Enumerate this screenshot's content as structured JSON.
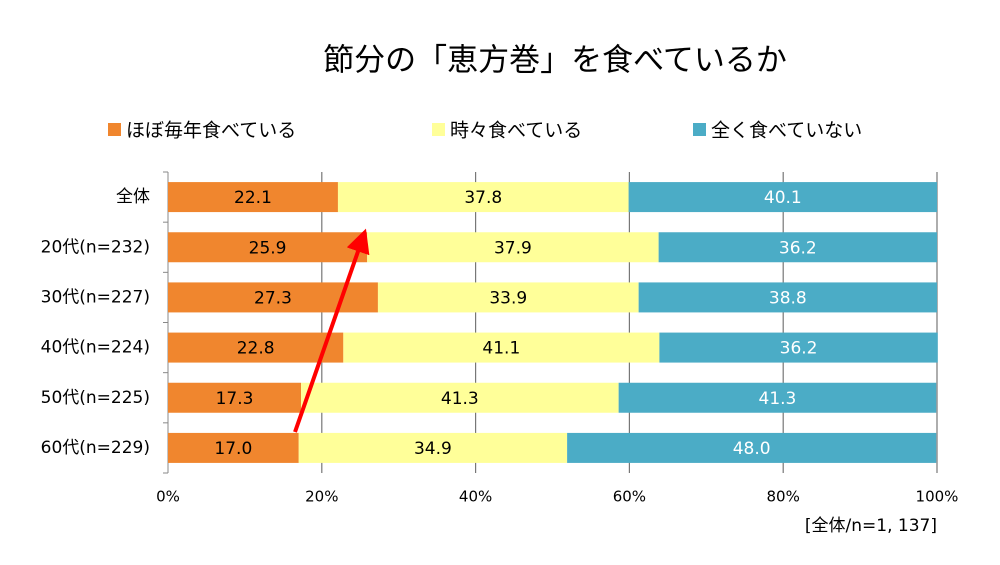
{
  "chart_data": {
    "type": "stacked_bar_horizontal",
    "title": "節分の「恵方巻」を食べているか",
    "annotation": "[全体/n=1, 137]",
    "categories": [
      "全体",
      "20代(n=232)",
      "30代(n=227)",
      "40代(n=224)",
      "50代(n=225)",
      "60代(n=229)"
    ],
    "series": [
      {
        "name": "ほぼ毎年食べている",
        "color": "#f0862e",
        "values": [
          22.1,
          25.9,
          27.3,
          22.8,
          17.3,
          17.0
        ],
        "value_labels": [
          "22.1",
          "25.9",
          "27.3",
          "22.8",
          "17.3",
          "17.0"
        ]
      },
      {
        "name": "時々食べている",
        "color": "#ffff99",
        "values": [
          37.8,
          37.9,
          33.9,
          41.1,
          41.3,
          34.9
        ]
      },
      {
        "name": "全く食べていない",
        "color": "#4bacc6",
        "values": [
          40.1,
          36.2,
          38.8,
          36.2,
          41.3,
          48.0
        ],
        "value_labels": [
          "40.1",
          "36.2",
          "38.8",
          "36.2",
          "41.3",
          "48.0"
        ]
      }
    ],
    "xlim": [
      0,
      100
    ],
    "xticks": [
      {
        "value": 0,
        "label": "0%"
      },
      {
        "value": 20,
        "label": "20%"
      },
      {
        "value": 40,
        "label": "40%"
      },
      {
        "value": 60,
        "label": "60%"
      },
      {
        "value": 80,
        "label": "80%"
      },
      {
        "value": 100,
        "label": "100%"
      }
    ],
    "grid": true
  }
}
